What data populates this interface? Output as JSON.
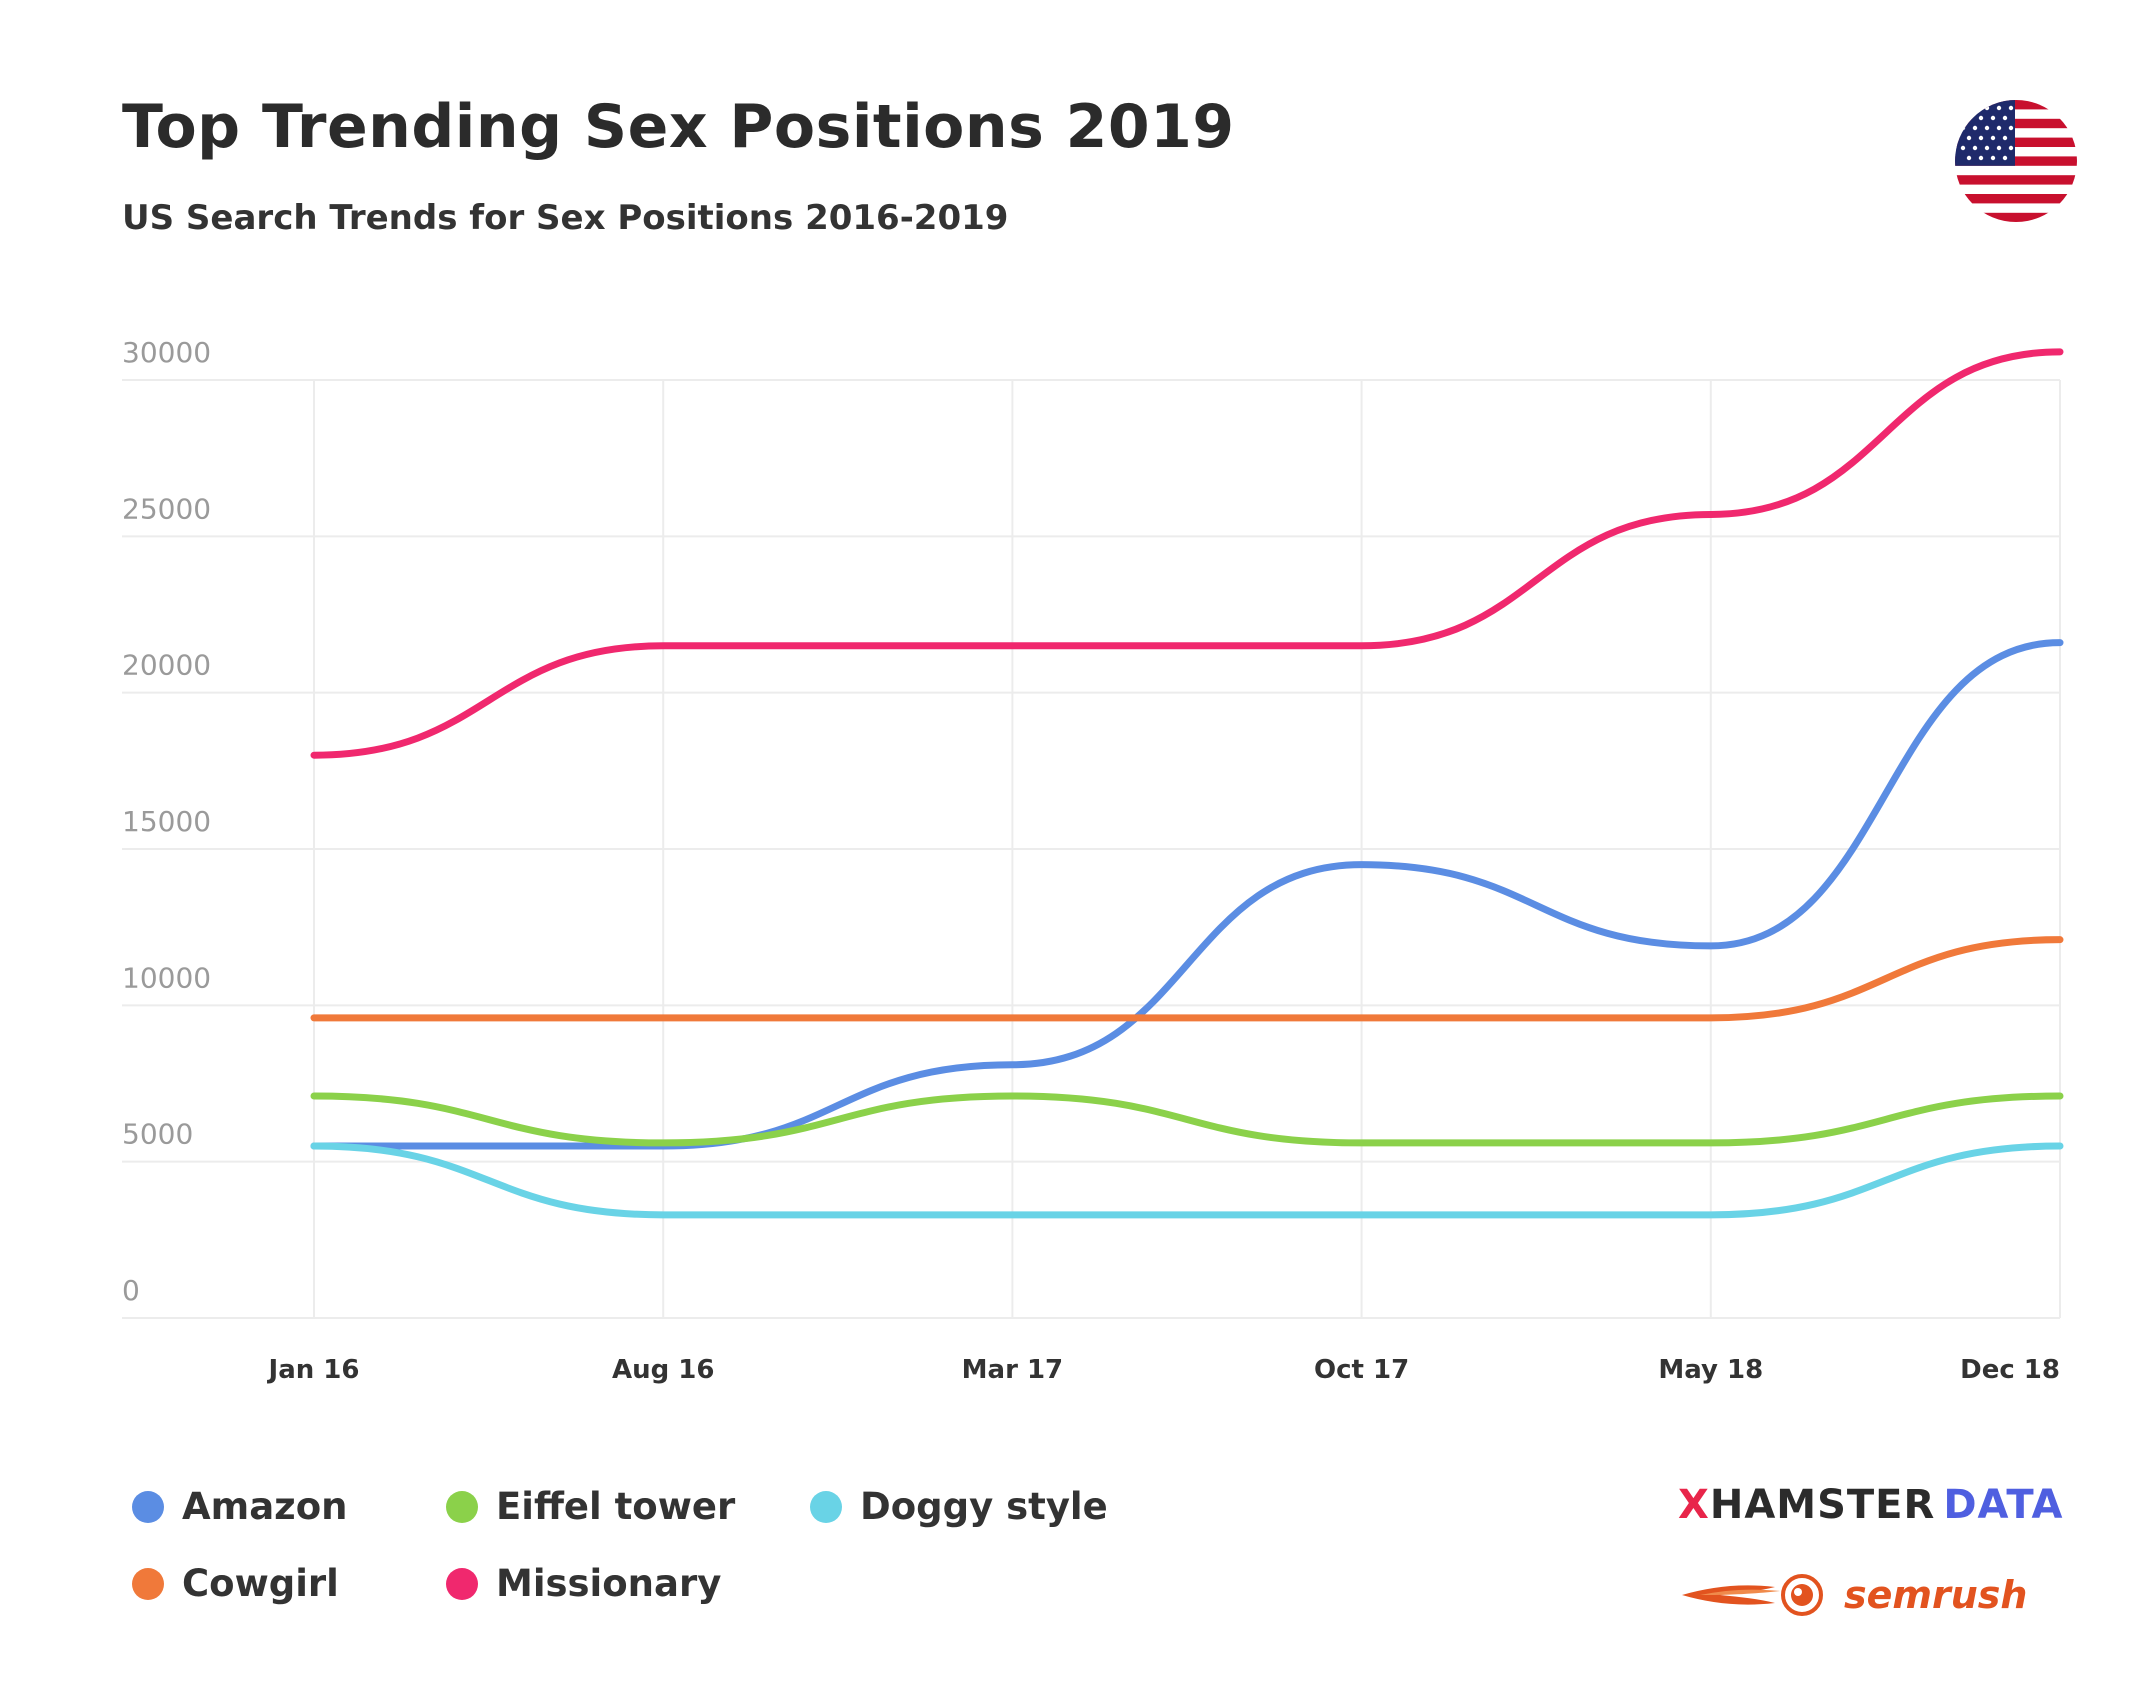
{
  "header": {
    "title": "Top Trending Sex Positions 2019",
    "subtitle": "US Search Trends for Sex Positions 2016-2019"
  },
  "branding": {
    "xhamster_prefix": "X",
    "xhamster_main": "HAMSTER",
    "xhamster_suffix": "DATA",
    "semrush": "semrush"
  },
  "colors": {
    "amazon": "#5b8de3",
    "eiffel": "#8bd14a",
    "doggy": "#69d3e6",
    "cowgirl": "#f0793a",
    "missionary": "#f0286e",
    "grid": "#ececec",
    "tick": "#9a9a9a"
  },
  "chart_data": {
    "type": "line",
    "title": "Top Trending Sex Positions 2019",
    "subtitle": "US Search Trends for Sex Positions 2016-2019",
    "categories": [
      "Jan 16",
      "Aug 16",
      "Mar 17",
      "Oct 17",
      "May 18",
      "Dec 18"
    ],
    "ylim": [
      0,
      30000
    ],
    "yticks": [
      "0",
      "5000",
      "10000",
      "15000",
      "20000",
      "25000",
      "30000"
    ],
    "grid": true,
    "legend_position": "bottom-left",
    "series": [
      {
        "key": "missionary",
        "name": "Missionary",
        "values": [
          18000,
          21500,
          21500,
          21500,
          25700,
          30900
        ]
      },
      {
        "key": "amazon",
        "name": "Amazon",
        "values": [
          5500,
          5500,
          8100,
          14500,
          11900,
          21600
        ]
      },
      {
        "key": "cowgirl",
        "name": "Cowgirl",
        "values": [
          9600,
          9600,
          9600,
          9600,
          9600,
          12100
        ]
      },
      {
        "key": "eiffel",
        "name": "Eiffel tower",
        "values": [
          7100,
          5600,
          7100,
          5600,
          5600,
          7100
        ]
      },
      {
        "key": "doggy",
        "name": "Doggy style",
        "values": [
          5500,
          3300,
          3300,
          3300,
          3300,
          5500
        ]
      }
    ]
  },
  "legend": [
    {
      "label": "Amazon",
      "color": "#5b8de3"
    },
    {
      "label": "Eiffel tower",
      "color": "#8bd14a"
    },
    {
      "label": "Doggy style",
      "color": "#69d3e6"
    },
    {
      "label": "Cowgirl",
      "color": "#f0793a"
    },
    {
      "label": "Missionary",
      "color": "#f0286e"
    }
  ]
}
